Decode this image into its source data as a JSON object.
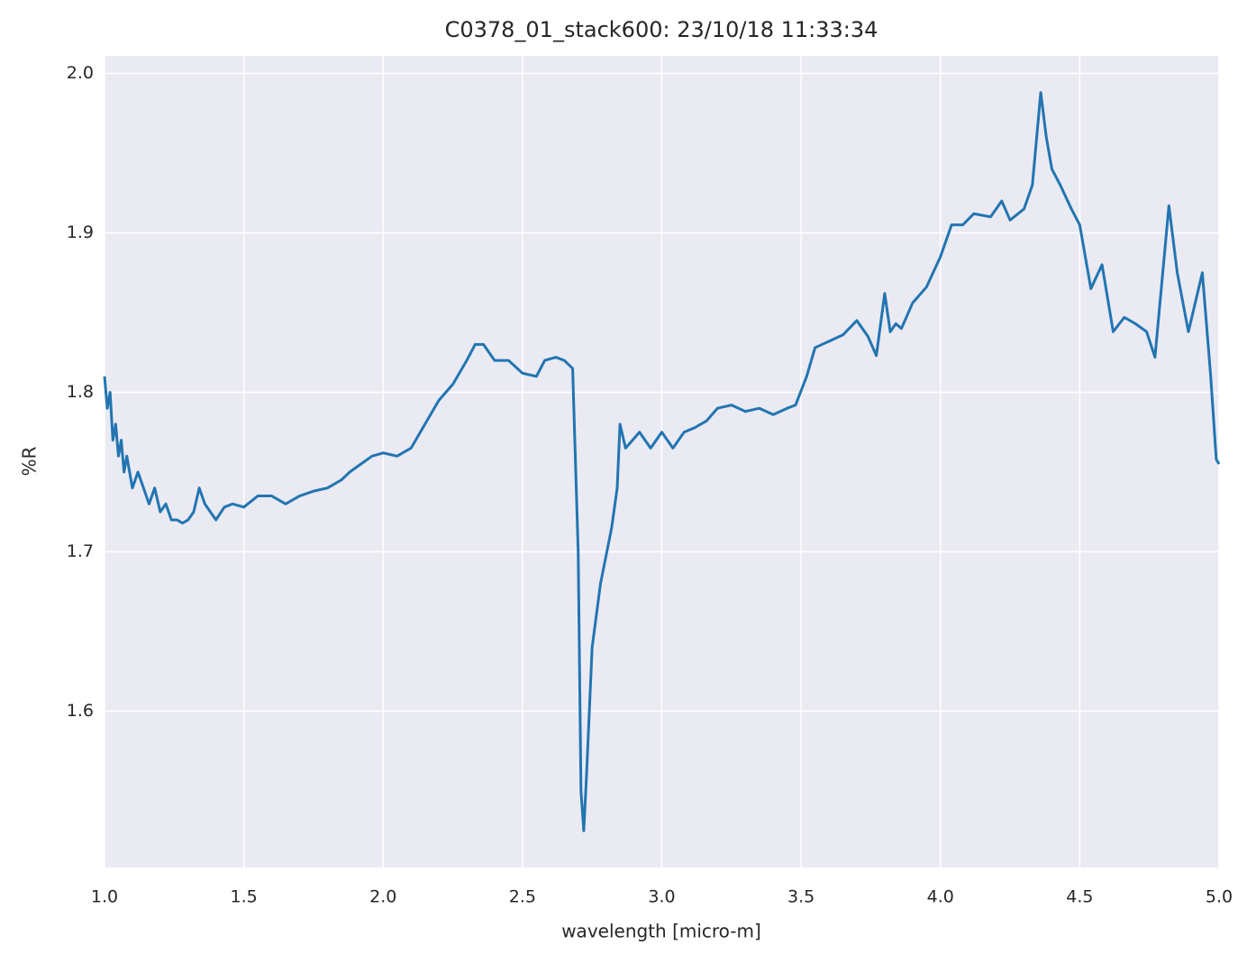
{
  "chart_data": {
    "type": "line",
    "title": "C0378_01_stack600:  23/10/18 11:33:34",
    "x_label": "wavelength [micro-m]",
    "y_label": "%R",
    "xlim": [
      1.0,
      5.0
    ],
    "ylim": [
      1.502,
      2.011
    ],
    "xticks": [
      {
        "value": 1.0,
        "label": "1.0"
      },
      1.5,
      {
        "value": 2.0,
        "label": "2.0"
      },
      2.5,
      {
        "value": 3.0,
        "label": "3.0"
      },
      3.5,
      {
        "value": 4.0,
        "label": "4.0"
      },
      4.5,
      {
        "value": 5.0,
        "label": "5.0"
      }
    ],
    "yticks": [
      1.6,
      1.7,
      1.8,
      1.9,
      {
        "value": 2.0,
        "label": "2.0"
      }
    ],
    "grid": true,
    "x": [
      1.0,
      1.01,
      1.02,
      1.03,
      1.04,
      1.05,
      1.06,
      1.07,
      1.08,
      1.1,
      1.12,
      1.14,
      1.16,
      1.18,
      1.2,
      1.22,
      1.24,
      1.26,
      1.28,
      1.3,
      1.32,
      1.34,
      1.36,
      1.38,
      1.4,
      1.43,
      1.46,
      1.5,
      1.55,
      1.6,
      1.65,
      1.7,
      1.75,
      1.8,
      1.85,
      1.88,
      1.92,
      1.96,
      2.0,
      2.05,
      2.1,
      2.15,
      2.2,
      2.25,
      2.3,
      2.33,
      2.36,
      2.4,
      2.45,
      2.5,
      2.55,
      2.58,
      2.62,
      2.65,
      2.68,
      2.7,
      2.71,
      2.72,
      2.73,
      2.75,
      2.78,
      2.82,
      2.84,
      2.85,
      2.87,
      2.92,
      2.96,
      3.0,
      3.04,
      3.08,
      3.12,
      3.16,
      3.2,
      3.25,
      3.3,
      3.35,
      3.4,
      3.45,
      3.48,
      3.52,
      3.55,
      3.6,
      3.65,
      3.7,
      3.74,
      3.77,
      3.8,
      3.82,
      3.84,
      3.86,
      3.9,
      3.95,
      4.0,
      4.04,
      4.08,
      4.12,
      4.18,
      4.22,
      4.25,
      4.3,
      4.33,
      4.36,
      4.38,
      4.4,
      4.43,
      4.47,
      4.5,
      4.54,
      4.58,
      4.62,
      4.66,
      4.7,
      4.74,
      4.77,
      4.82,
      4.85,
      4.89,
      4.94,
      4.97,
      4.99,
      5.0
    ],
    "series": [
      {
        "name": "%R",
        "color": "#2275b1",
        "values": [
          1.81,
          1.79,
          1.8,
          1.77,
          1.78,
          1.76,
          1.77,
          1.75,
          1.76,
          1.74,
          1.75,
          1.74,
          1.73,
          1.74,
          1.725,
          1.73,
          1.72,
          1.72,
          1.718,
          1.72,
          1.725,
          1.74,
          1.73,
          1.725,
          1.72,
          1.728,
          1.73,
          1.728,
          1.735,
          1.735,
          1.73,
          1.735,
          1.738,
          1.74,
          1.745,
          1.75,
          1.755,
          1.76,
          1.762,
          1.76,
          1.765,
          1.78,
          1.795,
          1.805,
          1.82,
          1.83,
          1.83,
          1.82,
          1.82,
          1.812,
          1.81,
          1.82,
          1.822,
          1.82,
          1.815,
          1.7,
          1.55,
          1.525,
          1.56,
          1.64,
          1.68,
          1.715,
          1.74,
          1.78,
          1.765,
          1.775,
          1.765,
          1.775,
          1.765,
          1.775,
          1.778,
          1.782,
          1.79,
          1.792,
          1.788,
          1.79,
          1.786,
          1.79,
          1.792,
          1.81,
          1.828,
          1.832,
          1.836,
          1.845,
          1.835,
          1.823,
          1.862,
          1.838,
          1.843,
          1.84,
          1.856,
          1.866,
          1.885,
          1.905,
          1.905,
          1.912,
          1.91,
          1.92,
          1.908,
          1.915,
          1.93,
          1.988,
          1.96,
          1.94,
          1.93,
          1.915,
          1.905,
          1.865,
          1.88,
          1.838,
          1.847,
          1.843,
          1.838,
          1.822,
          1.917,
          1.875,
          1.838,
          1.875,
          1.81,
          1.758,
          1.755
        ]
      }
    ]
  }
}
